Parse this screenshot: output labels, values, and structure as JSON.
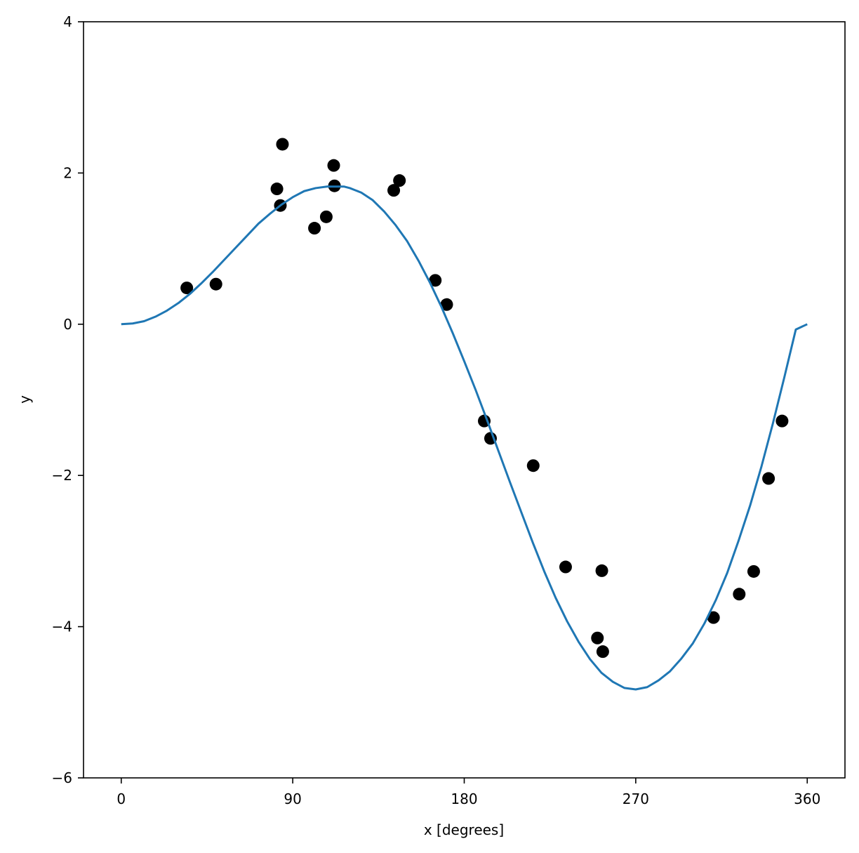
{
  "chart_data": {
    "type": "scatter",
    "title": "",
    "xlabel": "x [degrees]",
    "ylabel": "y",
    "xlim": [
      -19.8,
      379.8
    ],
    "ylim": [
      -6,
      4
    ],
    "x_ticks": [
      0,
      90,
      180,
      270,
      360
    ],
    "y_ticks": [
      -6,
      -4,
      -2,
      0,
      2,
      4
    ],
    "x_tick_labels": [
      "0",
      "90",
      "180",
      "270",
      "360"
    ],
    "y_tick_labels": [
      "−6",
      "−4",
      "−2",
      "0",
      "2",
      "4"
    ],
    "grid": false,
    "legend": "none",
    "series": [
      {
        "kind": "scatter",
        "color": "#000000",
        "points": [
          {
            "x": 34.4,
            "y": 0.48
          },
          {
            "x": 49.7,
            "y": 0.53
          },
          {
            "x": 81.7,
            "y": 1.79
          },
          {
            "x": 83.5,
            "y": 1.57
          },
          {
            "x": 84.6,
            "y": 2.38
          },
          {
            "x": 101.4,
            "y": 1.27
          },
          {
            "x": 107.6,
            "y": 1.42
          },
          {
            "x": 111.5,
            "y": 2.1
          },
          {
            "x": 111.9,
            "y": 1.83
          },
          {
            "x": 143.0,
            "y": 1.77
          },
          {
            "x": 146.0,
            "y": 1.9
          },
          {
            "x": 164.8,
            "y": 0.58
          },
          {
            "x": 170.8,
            "y": 0.26
          },
          {
            "x": 190.5,
            "y": -1.28
          },
          {
            "x": 193.8,
            "y": -1.51
          },
          {
            "x": 216.2,
            "y": -1.87
          },
          {
            "x": 233.2,
            "y": -3.21
          },
          {
            "x": 249.9,
            "y": -4.15
          },
          {
            "x": 252.2,
            "y": -3.26
          },
          {
            "x": 252.7,
            "y": -4.33
          },
          {
            "x": 310.8,
            "y": -3.88
          },
          {
            "x": 324.3,
            "y": -3.57
          },
          {
            "x": 331.9,
            "y": -3.27
          },
          {
            "x": 339.7,
            "y": -2.04
          },
          {
            "x": 346.8,
            "y": -1.28
          }
        ]
      },
      {
        "kind": "line",
        "color": "#1f77b4",
        "x": [
          0,
          6,
          12,
          18,
          24,
          30,
          36,
          42,
          48,
          54,
          60,
          66,
          72,
          78,
          84,
          90,
          96,
          102,
          108,
          114,
          117,
          120,
          126,
          132,
          138,
          144,
          150,
          156,
          162,
          168,
          174,
          180,
          186,
          192,
          198,
          204,
          210,
          216,
          222,
          228,
          234,
          240,
          246,
          252,
          258,
          264,
          270,
          276,
          282,
          288,
          294,
          300,
          306,
          312,
          318,
          324,
          330,
          336,
          342,
          348,
          354,
          360
        ],
        "y": [
          0.0,
          0.01,
          0.04,
          0.1,
          0.18,
          0.28,
          0.4,
          0.54,
          0.69,
          0.85,
          1.01,
          1.17,
          1.33,
          1.46,
          1.58,
          1.68,
          1.76,
          1.8,
          1.82,
          1.82,
          1.82,
          1.8,
          1.74,
          1.64,
          1.49,
          1.31,
          1.1,
          0.84,
          0.55,
          0.23,
          -0.12,
          -0.49,
          -0.87,
          -1.27,
          -1.68,
          -2.09,
          -2.49,
          -2.89,
          -3.27,
          -3.62,
          -3.93,
          -4.2,
          -4.43,
          -4.61,
          -4.73,
          -4.81,
          -4.83,
          -4.8,
          -4.71,
          -4.59,
          -4.42,
          -4.22,
          -3.96,
          -3.65,
          -3.29,
          -2.86,
          -2.4,
          -1.88,
          -1.31,
          -0.7,
          -0.07,
          0.0
        ]
      }
    ]
  }
}
